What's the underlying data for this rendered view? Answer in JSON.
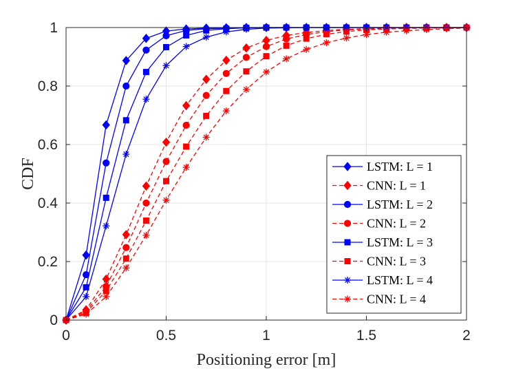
{
  "chart_data": {
    "type": "line",
    "title": "",
    "xlabel": "Positioning error [m]",
    "ylabel": "CDF",
    "xlim": [
      0,
      2
    ],
    "ylim": [
      0,
      1
    ],
    "grid": true,
    "legend_position": "bottom-right",
    "xticks": [
      0,
      0.5,
      1,
      1.5,
      2
    ],
    "xtick_labels": [
      "0",
      "0.5",
      "1",
      "1.5",
      "2"
    ],
    "yticks": [
      0,
      0.2,
      0.4,
      0.6,
      0.8,
      1
    ],
    "ytick_labels": [
      "0",
      "0.2",
      "0.4",
      "0.6",
      "0.8",
      "1"
    ],
    "x": [
      0,
      0.1,
      0.2,
      0.3,
      0.4,
      0.5,
      0.6,
      0.7,
      0.8,
      0.9,
      1.0,
      1.1,
      1.2,
      1.3,
      1.4,
      1.5,
      1.6,
      1.7,
      1.8,
      1.9,
      2.0
    ],
    "series": [
      {
        "name": "LSTM: L = 1",
        "color": "#0000ff",
        "dash": "solid",
        "marker": "diamond",
        "values": [
          0,
          0.222,
          0.667,
          0.887,
          0.963,
          0.988,
          0.995,
          0.998,
          0.999,
          1.0,
          1.0,
          1.0,
          1.0,
          1.0,
          1.0,
          1.0,
          1.0,
          1.0,
          1.0,
          1.0,
          1.0
        ]
      },
      {
        "name": "CNN: L = 1",
        "color": "#ff0000",
        "dash": "dashed",
        "marker": "diamond",
        "values": [
          0,
          0.035,
          0.14,
          0.292,
          0.458,
          0.608,
          0.733,
          0.823,
          0.888,
          0.93,
          0.956,
          0.973,
          0.983,
          0.99,
          0.994,
          0.996,
          0.998,
          0.999,
          0.999,
          1.0,
          1.0
        ]
      },
      {
        "name": "LSTM: L = 2",
        "color": "#0000ff",
        "dash": "solid",
        "marker": "circle",
        "values": [
          0,
          0.155,
          0.537,
          0.8,
          0.923,
          0.972,
          0.99,
          0.996,
          0.998,
          0.999,
          1.0,
          1.0,
          1.0,
          1.0,
          1.0,
          1.0,
          1.0,
          1.0,
          1.0,
          1.0,
          1.0
        ]
      },
      {
        "name": "CNN: L = 2",
        "color": "#ff0000",
        "dash": "dashed",
        "marker": "circle",
        "values": [
          0,
          0.03,
          0.115,
          0.248,
          0.4,
          0.542,
          0.666,
          0.768,
          0.843,
          0.898,
          0.935,
          0.961,
          0.976,
          0.986,
          0.992,
          0.995,
          0.997,
          0.998,
          0.999,
          0.999,
          1.0
        ]
      },
      {
        "name": "LSTM: L = 3",
        "color": "#0000ff",
        "dash": "solid",
        "marker": "square",
        "values": [
          0,
          0.112,
          0.418,
          0.683,
          0.848,
          0.933,
          0.973,
          0.99,
          0.996,
          0.999,
          1.0,
          1.0,
          1.0,
          1.0,
          1.0,
          1.0,
          1.0,
          1.0,
          1.0,
          1.0,
          1.0
        ]
      },
      {
        "name": "CNN: L = 3",
        "color": "#ff0000",
        "dash": "dashed",
        "marker": "square",
        "values": [
          0,
          0.025,
          0.1,
          0.21,
          0.34,
          0.475,
          0.593,
          0.698,
          0.783,
          0.85,
          0.902,
          0.938,
          0.962,
          0.977,
          0.986,
          0.992,
          0.995,
          0.997,
          0.998,
          0.999,
          1.0
        ]
      },
      {
        "name": "LSTM: L = 4",
        "color": "#0000ff",
        "dash": "solid",
        "marker": "asterisk",
        "values": [
          0,
          0.08,
          0.322,
          0.567,
          0.755,
          0.87,
          0.935,
          0.967,
          0.985,
          0.994,
          0.998,
          0.999,
          1.0,
          1.0,
          1.0,
          1.0,
          1.0,
          1.0,
          1.0,
          1.0,
          1.0
        ]
      },
      {
        "name": "CNN: L = 4",
        "color": "#ff0000",
        "dash": "dashed",
        "marker": "asterisk",
        "values": [
          0,
          0.02,
          0.08,
          0.178,
          0.29,
          0.41,
          0.522,
          0.625,
          0.715,
          0.788,
          0.848,
          0.893,
          0.925,
          0.948,
          0.964,
          0.976,
          0.984,
          0.989,
          0.993,
          0.996,
          0.998
        ]
      }
    ]
  }
}
